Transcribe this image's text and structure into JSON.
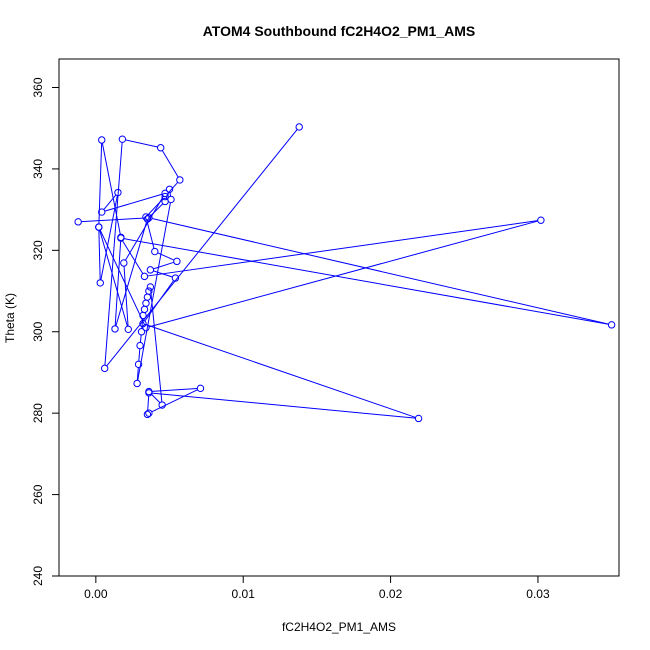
{
  "chart_data": {
    "type": "line",
    "title": "ATOM4 Southbound fC2H4O2_PM1_AMS",
    "xlabel": "fC2H4O2_PM1_AMS",
    "ylabel": "Theta (K)",
    "xlim": [
      -0.0025,
      0.0355
    ],
    "ylim": [
      240,
      367
    ],
    "x_ticks": [
      0.0,
      0.01,
      0.02,
      0.03
    ],
    "x_tick_labels": [
      "0.00",
      "0.01",
      "0.02",
      "0.03"
    ],
    "y_ticks": [
      240,
      260,
      280,
      300,
      320,
      340,
      360
    ],
    "y_tick_labels": [
      "240",
      "260",
      "280",
      "300",
      "320",
      "340",
      "360"
    ],
    "grid": false,
    "legend": "none",
    "line_mode": "both",
    "series": [
      {
        "color": "#0000ff",
        "x": [
          0.0138,
          0.0006,
          0.0018,
          0.0044,
          0.0057,
          0.0047,
          0.0034,
          0.004,
          0.0055,
          0.0037,
          0.0054,
          0.0032,
          0.0219,
          0.0036,
          0.0035,
          0.0036,
          0.0071,
          0.0036,
          0.0045,
          0.0037,
          0.0036,
          0.0035,
          0.0034,
          0.0033,
          0.0032,
          0.0031,
          0.003,
          0.0029,
          0.0028,
          0.0051,
          0.005,
          0.0047,
          0.0035,
          0.0013,
          0.0017,
          0.0004,
          0.0002,
          0.0022,
          0.0019,
          0.0047,
          0.0004,
          0.0015,
          0.0003,
          0.0002,
          0.0034,
          0.0302,
          0.0033,
          0.0017,
          0.035,
          0.0036,
          -0.0012
        ],
        "y": [
          350.3,
          291.0,
          347.3,
          345.2,
          337.3,
          333.2,
          328.2,
          319.7,
          317.3,
          315.2,
          313.2,
          302.0,
          278.7,
          285.0,
          279.7,
          280.0,
          286.1,
          285.3,
          282.0,
          311.0,
          310.0,
          308.5,
          307.0,
          305.5,
          304.0,
          300.0,
          296.6,
          292.0,
          287.3,
          332.5,
          335.0,
          332.0,
          327.7,
          300.7,
          323.2,
          347.1,
          325.7,
          300.6,
          316.9,
          334.0,
          329.4,
          334.2,
          312.0,
          325.7,
          301.0,
          327.4,
          313.6,
          323.0,
          301.7,
          328.0,
          327.0
        ]
      }
    ]
  }
}
